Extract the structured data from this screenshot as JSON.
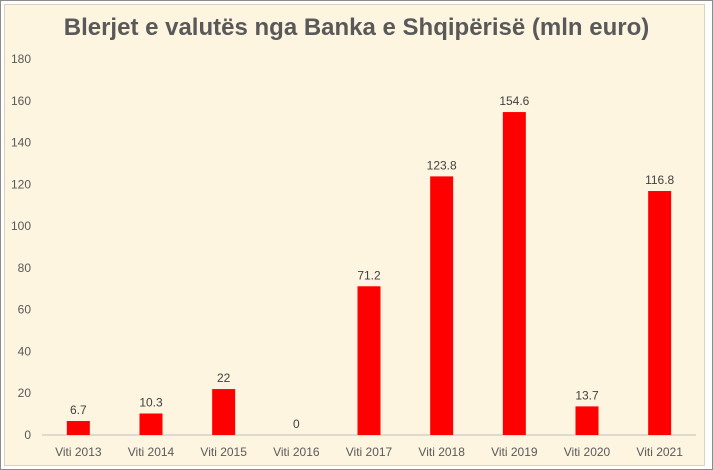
{
  "chart_data": {
    "type": "bar",
    "title": "Blerjet e valutës nga Banka e Shqipërisë (mln euro)",
    "xlabel": "",
    "ylabel": "",
    "categories": [
      "Viti 2013",
      "Viti 2014",
      "Viti 2015",
      "Viti 2016",
      "Viti 2017",
      "Viti 2018",
      "Viti 2019",
      "Viti 2020",
      "Viti 2021"
    ],
    "values": [
      6.7,
      10.3,
      22,
      0,
      71.2,
      123.8,
      154.6,
      13.7,
      116.8
    ],
    "data_labels": [
      "6.7",
      "10.3",
      "22",
      "0",
      "71.2",
      "123.8",
      "154.6",
      "13.7",
      "116.8"
    ],
    "ylim": [
      0,
      180
    ],
    "yticks": [
      "0",
      "20",
      "40",
      "60",
      "80",
      "100",
      "120",
      "140",
      "160",
      "180"
    ],
    "grid": false,
    "legend": "none",
    "colors": {
      "bar": "#ff0000",
      "background": "#fef5e1",
      "axis": "#bfbfbf",
      "text": "#595959"
    }
  }
}
